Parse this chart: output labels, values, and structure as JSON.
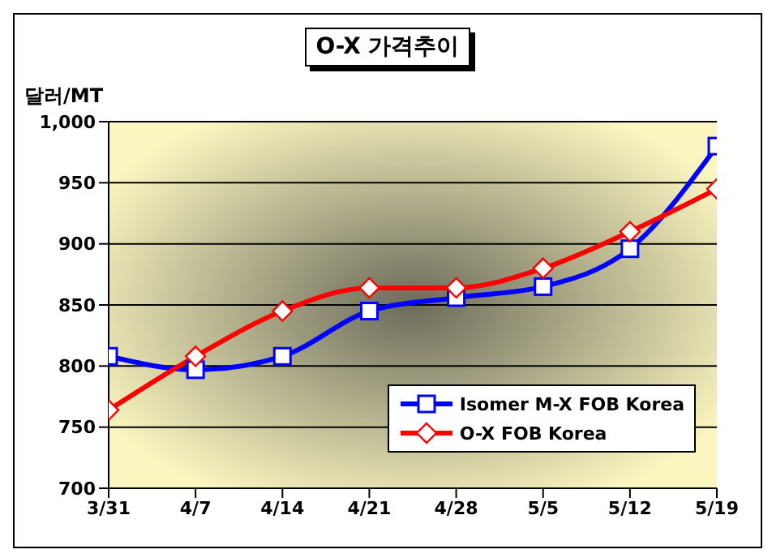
{
  "chart_data": {
    "type": "line",
    "title": "O-X 가격추이",
    "ylabel": "달러/MT",
    "categories": [
      "3/31",
      "4/7",
      "4/14",
      "4/21",
      "4/28",
      "5/5",
      "5/12",
      "5/19"
    ],
    "series": [
      {
        "name": "Isomer M-X FOB Korea",
        "color": "#0000ff",
        "marker": "square",
        "values": [
          808,
          797,
          808,
          845,
          856,
          865,
          896,
          980
        ]
      },
      {
        "name": "O-X FOB Korea",
        "color": "#ff0000",
        "marker": "diamond",
        "values": [
          764,
          808,
          845,
          864,
          864,
          880,
          910,
          945
        ]
      }
    ],
    "ylim": [
      700,
      1000
    ],
    "yticks": [
      700,
      750,
      800,
      850,
      900,
      950,
      {
        "value": 1000,
        "label": "1,000"
      }
    ],
    "grid": "y",
    "legend": "bottom right",
    "line_style": "solid"
  }
}
